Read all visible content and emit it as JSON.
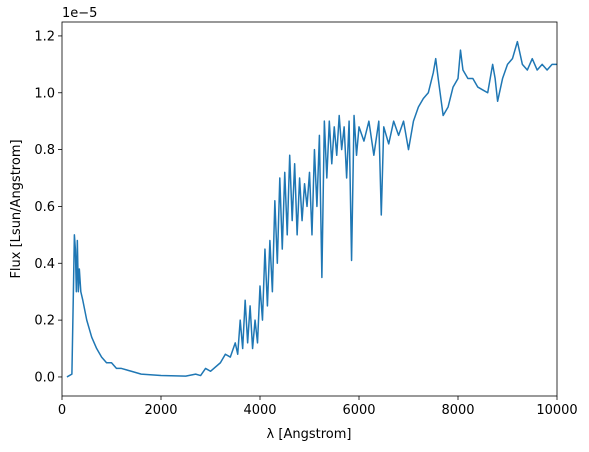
{
  "chart_data": {
    "type": "line",
    "xlabel": "λ [Angstrom]",
    "ylabel": "Flux [Lsun/Angstrom]",
    "offset_text": "1e−5",
    "xlim": [
      0,
      10000
    ],
    "xticks": [
      0,
      2000,
      4000,
      6000,
      8000,
      10000
    ],
    "ylim": [
      -0.067,
      1.249
    ],
    "yticks": [
      {
        "value": 0,
        "label": "0.0"
      },
      0.2,
      0.4,
      0.6,
      0.8,
      {
        "value": 1,
        "label": "1.0"
      },
      1.2
    ],
    "series": [
      {
        "color": "#1f77b4",
        "x": [
          100,
          200,
          230,
          250,
          270,
          290,
          310,
          330,
          350,
          380,
          420,
          500,
          600,
          700,
          800,
          900,
          1000,
          1100,
          1200,
          1400,
          1600,
          2000,
          2500,
          2700,
          2800,
          2900,
          3000,
          3200,
          3300,
          3400,
          3500,
          3550,
          3600,
          3650,
          3700,
          3750,
          3800,
          3850,
          3900,
          3950,
          4000,
          4050,
          4100,
          4150,
          4200,
          4250,
          4300,
          4350,
          4400,
          4450,
          4500,
          4550,
          4600,
          4650,
          4700,
          4750,
          4800,
          4850,
          4900,
          4950,
          5000,
          5050,
          5100,
          5150,
          5200,
          5250,
          5300,
          5350,
          5400,
          5450,
          5500,
          5550,
          5600,
          5650,
          5700,
          5750,
          5800,
          5850,
          5900,
          5950,
          6000,
          6100,
          6200,
          6300,
          6400,
          6450,
          6500,
          6600,
          6700,
          6800,
          6900,
          7000,
          7100,
          7200,
          7300,
          7400,
          7500,
          7550,
          7600,
          7700,
          7800,
          7900,
          8000,
          8050,
          8100,
          8200,
          8300,
          8400,
          8500,
          8600,
          8700,
          8750,
          8800,
          8900,
          9000,
          9100,
          9200,
          9300,
          9400,
          9500,
          9600,
          9700,
          9800,
          9900,
          10000
        ],
        "values": [
          0.0,
          0.01,
          0.3,
          0.5,
          0.45,
          0.3,
          0.48,
          0.3,
          0.38,
          0.3,
          0.27,
          0.2,
          0.14,
          0.1,
          0.07,
          0.05,
          0.05,
          0.03,
          0.03,
          0.02,
          0.01,
          0.005,
          0.003,
          0.01,
          0.005,
          0.03,
          0.02,
          0.05,
          0.08,
          0.07,
          0.12,
          0.08,
          0.2,
          0.1,
          0.27,
          0.12,
          0.25,
          0.1,
          0.2,
          0.12,
          0.32,
          0.2,
          0.45,
          0.25,
          0.48,
          0.3,
          0.62,
          0.4,
          0.7,
          0.45,
          0.72,
          0.5,
          0.78,
          0.55,
          0.75,
          0.5,
          0.7,
          0.55,
          0.68,
          0.6,
          0.72,
          0.5,
          0.8,
          0.6,
          0.85,
          0.35,
          0.9,
          0.7,
          0.9,
          0.75,
          0.88,
          0.78,
          0.92,
          0.8,
          0.88,
          0.7,
          0.9,
          0.41,
          0.92,
          0.78,
          0.88,
          0.83,
          0.9,
          0.78,
          0.9,
          0.57,
          0.88,
          0.82,
          0.9,
          0.85,
          0.9,
          0.8,
          0.9,
          0.95,
          0.98,
          1.0,
          1.07,
          1.12,
          1.05,
          0.92,
          0.95,
          1.02,
          1.05,
          1.15,
          1.08,
          1.05,
          1.05,
          1.02,
          1.01,
          1.0,
          1.1,
          1.05,
          0.97,
          1.05,
          1.1,
          1.12,
          1.18,
          1.1,
          1.08,
          1.12,
          1.08,
          1.1,
          1.08,
          1.1,
          1.1
        ]
      }
    ]
  }
}
